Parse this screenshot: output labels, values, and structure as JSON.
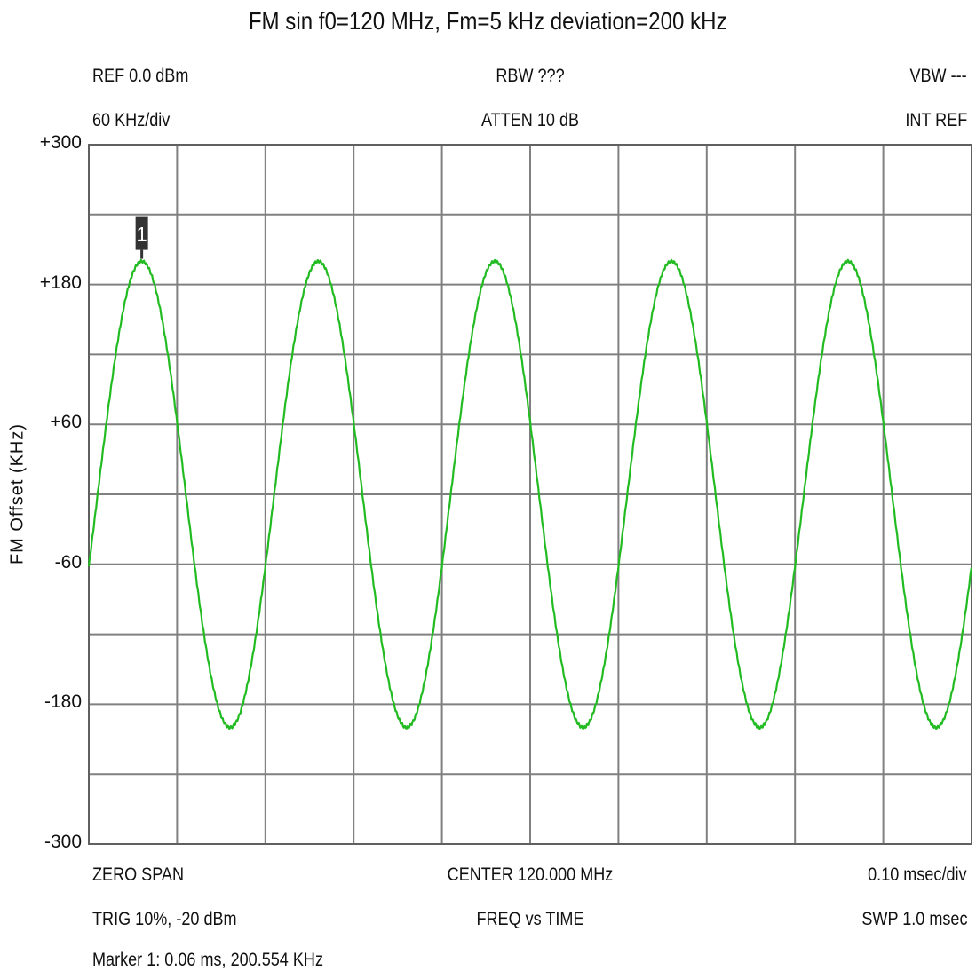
{
  "header": {
    "title": "FM sin f0=120 MHz, Fm=5 kHz deviation=200 kHz",
    "ref": "REF 0.0 dBm",
    "rbw": "RBW ???",
    "vbw": "VBW ---",
    "scale": "60 KHz/div",
    "atten": "ATTEN 10 dB",
    "int_ref": "INT REF"
  },
  "footer": {
    "zero_span": "ZERO SPAN",
    "center": "CENTER 120.000 MHz",
    "time_div": "0.10 msec/div",
    "trig": "TRIG 10%, -20 dBm",
    "mode": "FREQ vs TIME",
    "sweep": "SWP 1.0 msec",
    "marker_readout": "Marker 1: 0.06 ms, 200.554 KHz"
  },
  "chart_data": {
    "type": "line",
    "title": "FM sin f0=120 MHz, Fm=5 kHz deviation=200 kHz",
    "xlabel": "",
    "ylabel": "FM Offset (KHz)",
    "xlim": [
      0,
      1.0
    ],
    "x_unit": "ms",
    "ylim": [
      -300,
      300
    ],
    "y_tick_labels": [
      "+300",
      "+180",
      "+60",
      "-60",
      "-180",
      "-300"
    ],
    "y_ticks": [
      300,
      180,
      60,
      -60,
      -180,
      -300
    ],
    "x_divisions": 10,
    "y_divisions": 10,
    "grid": true,
    "series": [
      {
        "color": "#22bb22",
        "signal": "sine",
        "amplitude_khz": 200,
        "frequency_khz": 5,
        "peak_times_ms": [
          0.06,
          0.26,
          0.46,
          0.66,
          0.86
        ],
        "trough_times_ms": [
          0.16,
          0.36,
          0.56,
          0.76,
          0.96
        ]
      }
    ],
    "markers": [
      {
        "label": "1",
        "x": 0.06,
        "y": 200.554
      }
    ]
  },
  "colors": {
    "trace": "#22bb22",
    "grid": "#808080",
    "frame": "#606060",
    "marker_bg": "#333333"
  }
}
